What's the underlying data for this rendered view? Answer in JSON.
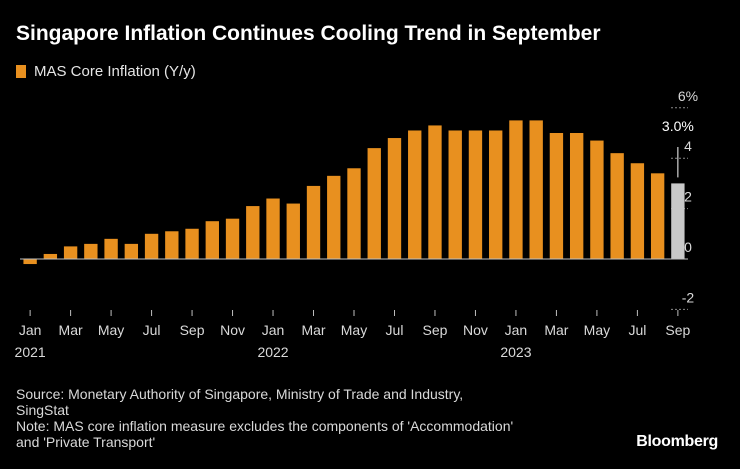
{
  "header": {
    "title": "Singapore Inflation Continues Cooling Trend in September"
  },
  "legend": {
    "label": "MAS Core Inflation (Y/y)"
  },
  "chart_data": {
    "type": "bar",
    "title": "Singapore Inflation Continues Cooling Trend in September",
    "xlabel": "",
    "ylabel": "",
    "ylim": [
      -2,
      6
    ],
    "y_ticks": [
      {
        "value": 6,
        "label": "6%"
      },
      {
        "value": 4,
        "label": "4"
      },
      {
        "value": 2,
        "label": "2"
      },
      {
        "value": 0,
        "label": "0"
      },
      {
        "value": -2,
        "label": "-2"
      }
    ],
    "series": [
      {
        "name": "MAS Core Inflation (Y/y)",
        "color": "#e8901f",
        "highlight_color": "#c8c8c8",
        "highlight_index": 32,
        "categories": [
          "2021-01",
          "2021-02",
          "2021-03",
          "2021-04",
          "2021-05",
          "2021-06",
          "2021-07",
          "2021-08",
          "2021-09",
          "2021-10",
          "2021-11",
          "2021-12",
          "2022-01",
          "2022-02",
          "2022-03",
          "2022-04",
          "2022-05",
          "2022-06",
          "2022-07",
          "2022-08",
          "2022-09",
          "2022-10",
          "2022-11",
          "2022-12",
          "2023-01",
          "2023-02",
          "2023-03",
          "2023-04",
          "2023-05",
          "2023-06",
          "2023-07",
          "2023-08",
          "2023-09"
        ],
        "values": [
          -0.2,
          0.2,
          0.5,
          0.6,
          0.8,
          0.6,
          1.0,
          1.1,
          1.2,
          1.5,
          1.6,
          2.1,
          2.4,
          2.2,
          2.9,
          3.3,
          3.6,
          4.4,
          4.8,
          5.1,
          5.3,
          5.1,
          5.1,
          5.1,
          5.5,
          5.5,
          5.0,
          5.0,
          4.7,
          4.2,
          3.8,
          3.4,
          3.0
        ]
      }
    ],
    "x_tick_labels": [
      {
        "index": 0,
        "label": "Jan"
      },
      {
        "index": 2,
        "label": "Mar"
      },
      {
        "index": 4,
        "label": "May"
      },
      {
        "index": 6,
        "label": "Jul"
      },
      {
        "index": 8,
        "label": "Sep"
      },
      {
        "index": 10,
        "label": "Nov"
      },
      {
        "index": 12,
        "label": "Jan"
      },
      {
        "index": 14,
        "label": "Mar"
      },
      {
        "index": 16,
        "label": "May"
      },
      {
        "index": 18,
        "label": "Jul"
      },
      {
        "index": 20,
        "label": "Sep"
      },
      {
        "index": 22,
        "label": "Nov"
      },
      {
        "index": 24,
        "label": "Jan"
      },
      {
        "index": 26,
        "label": "Mar"
      },
      {
        "index": 28,
        "label": "May"
      },
      {
        "index": 30,
        "label": "Jul"
      },
      {
        "index": 32,
        "label": "Sep"
      }
    ],
    "year_labels": [
      {
        "index": 0,
        "label": "2021"
      },
      {
        "index": 12,
        "label": "2022"
      },
      {
        "index": 24,
        "label": "2023"
      }
    ],
    "annotation": {
      "index": 32,
      "label": "3.0%"
    }
  },
  "footer": {
    "source_line1": "Source: Monetary Authority of Singapore, Ministry of Trade and Industry,",
    "source_line2": "SingStat",
    "note_line1": "Note: MAS core inflation measure excludes the components of 'Accommodation'",
    "note_line2": "and 'Private Transport'",
    "brand": "Bloomberg"
  }
}
